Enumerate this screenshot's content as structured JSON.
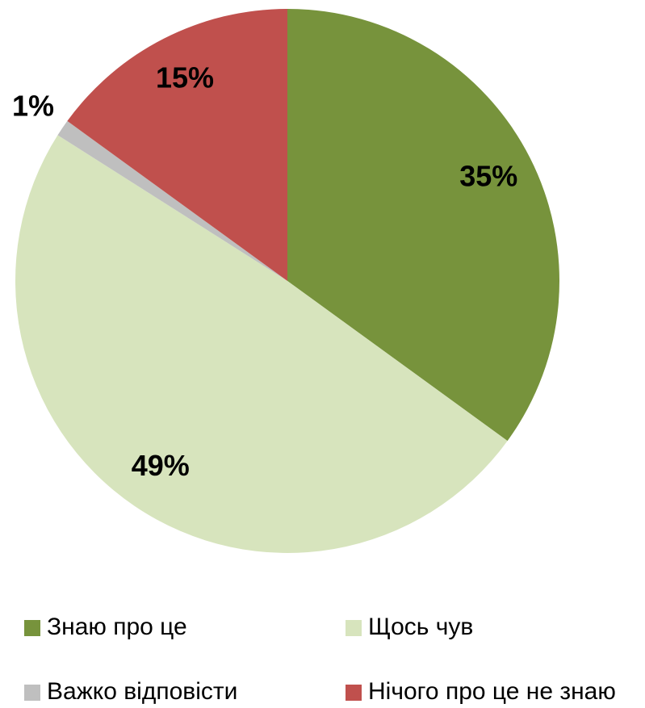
{
  "chart_data": {
    "type": "pie",
    "categories": [
      "Знаю про це",
      "Щось чув",
      "Важко відповісти",
      "Нічого про це не знаю"
    ],
    "values": [
      35,
      49,
      1,
      15
    ],
    "value_labels": [
      "35%",
      "49%",
      "1%",
      "15%"
    ],
    "colors": [
      "#77933c",
      "#d7e4bd",
      "#bfbfbf",
      "#c0504d"
    ],
    "legend": "bottom"
  }
}
